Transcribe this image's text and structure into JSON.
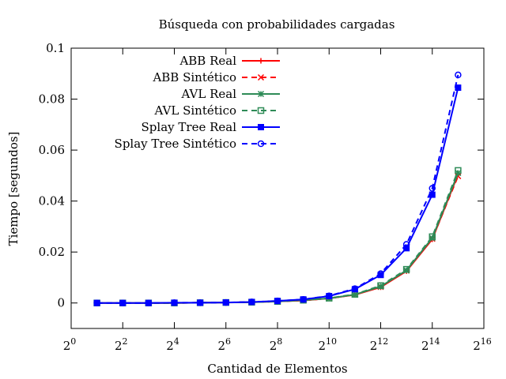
{
  "chart_data": {
    "type": "line",
    "title": "Búsqueda con probabilidades cargadas",
    "xlabel": "Cantidad de Elementos",
    "ylabel": "Tiempo [segundos]",
    "x_scale": "log2",
    "x_tick_base": "2",
    "x_ticks_exponents": [
      0,
      2,
      4,
      6,
      8,
      10,
      12,
      14,
      16
    ],
    "xlim": [
      1,
      65536
    ],
    "ylim": [
      -0.01,
      0.1
    ],
    "y_ticks": [
      0,
      0.02,
      0.04,
      0.06,
      0.08,
      0.1
    ],
    "y_tick_labels": [
      "0",
      "0.02",
      "0.04",
      "0.06",
      "0.08",
      "0.1"
    ],
    "legend_position": "top-left",
    "x": [
      2,
      4,
      8,
      16,
      32,
      64,
      128,
      256,
      512,
      1024,
      2048,
      4096,
      8192,
      16384,
      32768
    ],
    "series": [
      {
        "name": "ABB Real",
        "color": "#ff0000",
        "dash": "solid",
        "marker": "plus",
        "values": [
          0.0,
          0.0,
          0.0,
          0.0,
          0.0001,
          0.0002,
          0.0003,
          0.0006,
          0.001,
          0.0018,
          0.0032,
          0.0062,
          0.0125,
          0.025,
          0.0505
        ]
      },
      {
        "name": "ABB Sintético",
        "color": "#ff0000",
        "dash": "dashed",
        "marker": "cross",
        "values": [
          0.0,
          0.0,
          0.0,
          0.0,
          0.0001,
          0.0002,
          0.0003,
          0.0006,
          0.001,
          0.0018,
          0.0033,
          0.0063,
          0.0127,
          0.0252,
          0.0498
        ]
      },
      {
        "name": "AVL Real",
        "color": "#2e8b57",
        "dash": "solid",
        "marker": "star",
        "values": [
          0.0,
          0.0,
          0.0,
          0.0,
          0.0001,
          0.0002,
          0.0003,
          0.0006,
          0.0011,
          0.0018,
          0.0033,
          0.0065,
          0.0128,
          0.0255,
          0.051
        ]
      },
      {
        "name": "AVL Sintético",
        "color": "#2e8b57",
        "dash": "dashed",
        "marker": "square-open",
        "values": [
          0.0,
          0.0,
          0.0,
          0.0,
          0.0001,
          0.0002,
          0.0003,
          0.0006,
          0.0011,
          0.0019,
          0.0034,
          0.0068,
          0.0132,
          0.026,
          0.052
        ]
      },
      {
        "name": "Splay Tree Real",
        "color": "#0000ff",
        "dash": "solid",
        "marker": "square-filled",
        "values": [
          0.0,
          0.0,
          0.0,
          0.0001,
          0.0001,
          0.0002,
          0.0004,
          0.0008,
          0.0014,
          0.0027,
          0.0054,
          0.011,
          0.0215,
          0.0425,
          0.0845
        ]
      },
      {
        "name": "Splay Tree Sintético",
        "color": "#0000ff",
        "dash": "dashed",
        "marker": "circle-open",
        "values": [
          0.0,
          0.0,
          0.0,
          0.0001,
          0.0001,
          0.0002,
          0.0004,
          0.0008,
          0.0014,
          0.0028,
          0.0056,
          0.0115,
          0.023,
          0.045,
          0.0895
        ]
      }
    ]
  }
}
